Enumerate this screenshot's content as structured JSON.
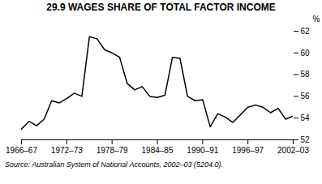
{
  "chart_data": {
    "type": "line",
    "title": "29.9   WAGES SHARE OF TOTAL FACTOR INCOME",
    "source": "Source: Australian System of National Accounts, 2002–03 (5204.0).",
    "ylabel": "%",
    "x": [
      0,
      1,
      2,
      3,
      4,
      5,
      6,
      7,
      8,
      9,
      10,
      11,
      12,
      13,
      14,
      15,
      16,
      17,
      18,
      19,
      20,
      21,
      22,
      23,
      24,
      25,
      26,
      27,
      28,
      29,
      30,
      31,
      32,
      33,
      34,
      35,
      36
    ],
    "values": [
      53.0,
      53.7,
      53.3,
      53.9,
      55.6,
      55.4,
      55.8,
      56.3,
      56.0,
      61.5,
      61.3,
      60.3,
      60.0,
      59.6,
      57.2,
      56.6,
      56.9,
      56.0,
      55.9,
      56.1,
      59.6,
      59.5,
      56.0,
      55.6,
      55.7,
      53.2,
      54.4,
      54.1,
      53.6,
      54.3,
      55.0,
      55.2,
      55.0,
      54.5,
      54.9,
      53.9,
      54.2
    ],
    "color": "#000000",
    "xlim": [
      0,
      36
    ],
    "xticks": [
      {
        "value": 0,
        "label": "1966–67"
      },
      {
        "value": 6,
        "label": "1972–73"
      },
      {
        "value": 12,
        "label": "1978–79"
      },
      {
        "value": 18,
        "label": "1984–85"
      },
      {
        "value": 24,
        "label": "1990–91"
      },
      {
        "value": 30,
        "label": "1996–97"
      },
      {
        "value": 36,
        "label": "2002–03"
      }
    ],
    "ylim": [
      52,
      62
    ],
    "yticks": [
      52,
      54,
      56,
      58,
      60,
      62
    ],
    "grid": false
  }
}
